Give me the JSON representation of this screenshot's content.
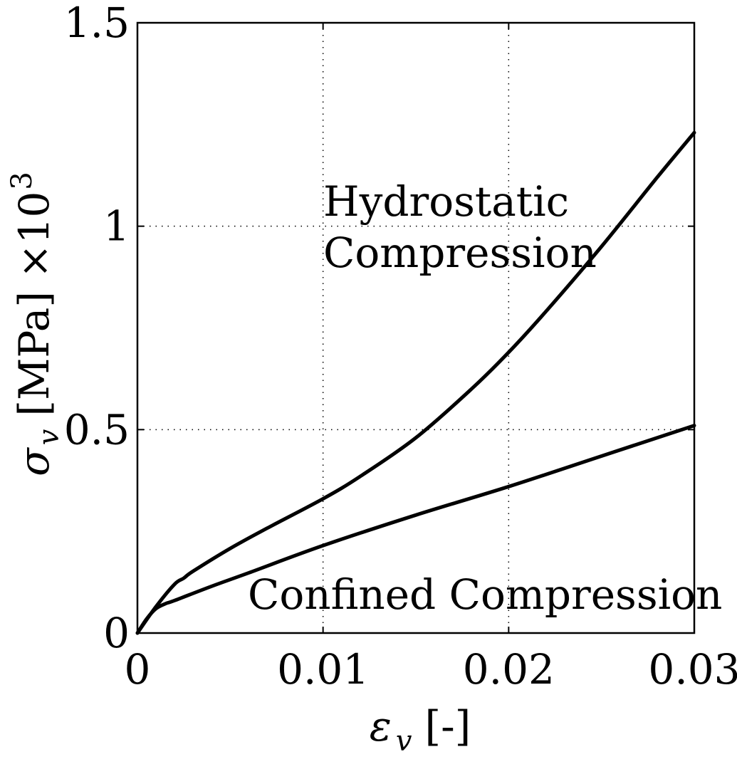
{
  "chart_data": {
    "type": "line",
    "xlabel": {
      "symbol": "ε",
      "subscript": "v",
      "unit": "[-]"
    },
    "ylabel": {
      "symbol": "σ",
      "subscript": "v",
      "unit": "[MPa]",
      "multiplier": "×10",
      "exponent": "3"
    },
    "xlim": [
      0,
      0.03
    ],
    "ylim": [
      0,
      1.5
    ],
    "x_ticks": [
      "0",
      "0.01",
      "0.02",
      "0.03"
    ],
    "y_ticks": [
      "0",
      "0.5",
      "1",
      "1.5"
    ],
    "x_tick_values": [
      0,
      0.01,
      0.02,
      0.03
    ],
    "y_tick_values": [
      0,
      0.5,
      1,
      1.5
    ],
    "grid": true,
    "line_color": "#000000",
    "series": [
      {
        "x": [
          0,
          0.001,
          0.002,
          0.0025,
          0.003,
          0.005,
          0.007,
          0.01,
          0.012,
          0.015,
          0.018,
          0.02,
          0.022,
          0.025,
          0.028,
          0.03
        ],
        "y": [
          0,
          0.065,
          0.12,
          0.135,
          0.152,
          0.208,
          0.258,
          0.33,
          0.385,
          0.48,
          0.6,
          0.69,
          0.79,
          0.95,
          1.12,
          1.23
        ]
      },
      {
        "x": [
          0,
          0.0005,
          0.001,
          0.0015,
          0.002,
          0.004,
          0.006,
          0.01,
          0.015,
          0.02,
          0.025,
          0.03
        ],
        "y": [
          0,
          0.035,
          0.06,
          0.072,
          0.08,
          0.115,
          0.148,
          0.215,
          0.29,
          0.36,
          0.435,
          0.51
        ]
      }
    ],
    "annotations": [
      {
        "lines": [
          "Hydrostatic",
          "Compression"
        ]
      },
      {
        "lines": [
          "Confined Compression"
        ]
      }
    ]
  }
}
